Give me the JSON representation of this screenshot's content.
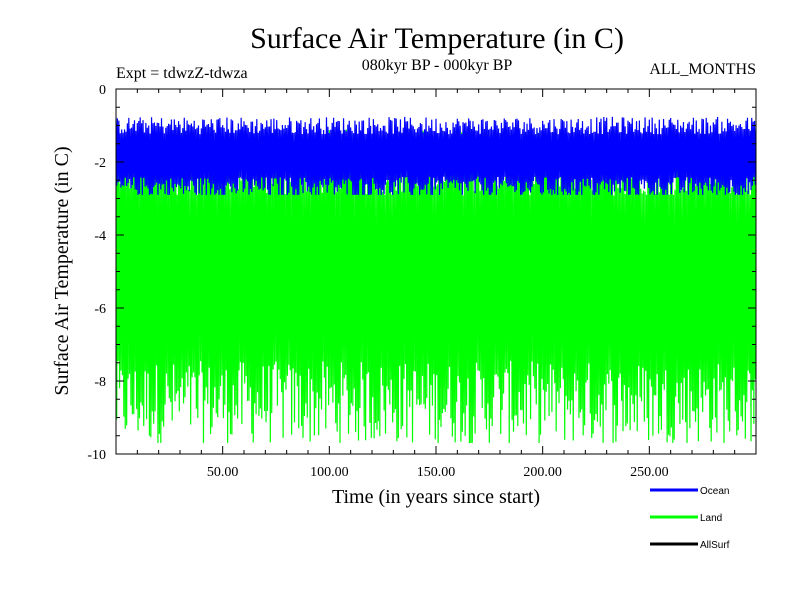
{
  "header": {
    "title": "Surface Air Temperature (in C)",
    "experiment": "Expt = tdwzZ-tdwza",
    "period": "080kyr BP - 000kyr BP",
    "months": "ALL_MONTHS"
  },
  "chart_data": {
    "type": "line",
    "title": "Surface Air Temperature (in C)",
    "xlabel": "Time (in years since start)",
    "ylabel": "Surface Air Temperature (in C)",
    "xlim": [
      0,
      300
    ],
    "ylim": [
      -10,
      0
    ],
    "x_ticks": [
      50,
      100,
      150,
      200,
      250
    ],
    "x_tick_labels": [
      "50.00",
      "100.00",
      "150.00",
      "200.00",
      "250.00"
    ],
    "y_ticks": [
      0,
      -2,
      -4,
      -6,
      -8,
      -10
    ],
    "y_tick_labels": [
      "0",
      "-2",
      "-4",
      "-6",
      "-8",
      "-10"
    ],
    "grid": false,
    "legend_position": "bottom-right",
    "series": [
      {
        "name": "Ocean",
        "color": "#0000ff",
        "band_low": -2.7,
        "band_high": -1.0,
        "approx_mean": -1.8,
        "approx_min": -2.9,
        "approx_max": -0.5
      },
      {
        "name": "Land",
        "color": "#00ff00",
        "band_low": -8.6,
        "band_high": -2.0,
        "approx_mean": -5.0,
        "approx_min": -9.7,
        "approx_max": -0.7
      },
      {
        "name": "AllSurf",
        "color": "#000000",
        "band_low": -2.6,
        "band_high": -2.6,
        "approx_mean": -2.6
      }
    ]
  }
}
